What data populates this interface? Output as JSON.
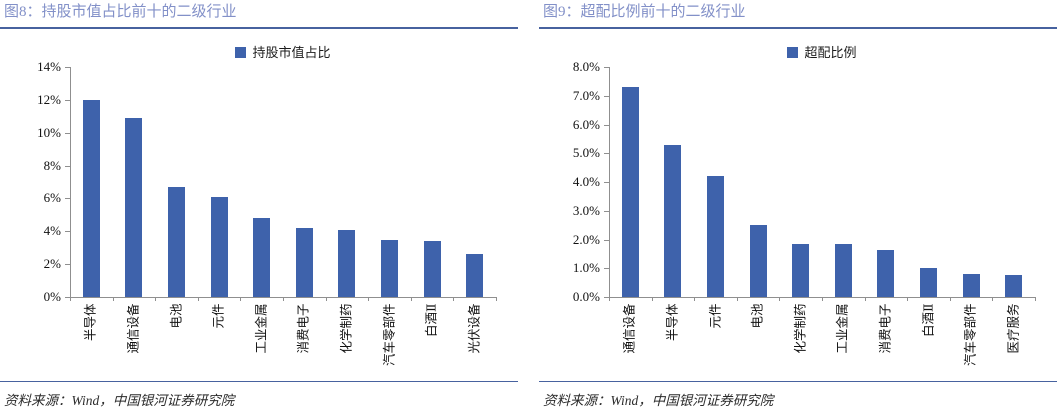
{
  "colors": {
    "bar": "#3E62AB",
    "title_text": "#8290C8",
    "rule": "#47629F",
    "axis": "#8F8F8F"
  },
  "figures": [
    {
      "title": "图8：持股市值占比前十的二级行业",
      "source": "资料来源：Wind，中国银河证券研究院"
    },
    {
      "title": "图9：超配比例前十的二级行业",
      "source": "资料来源：Wind，中国银河证券研究院"
    }
  ],
  "chart_data": [
    {
      "type": "bar",
      "title": "图8：持股市值占比前十的二级行业",
      "legend": [
        "持股市值占比"
      ],
      "legend_position": "top-center",
      "categories": [
        "半导体",
        "通信设备",
        "电池",
        "元件",
        "工业金属",
        "消费电子",
        "化学制药",
        "汽车零部件",
        "白酒Ⅱ",
        "光伏设备"
      ],
      "values": [
        12.0,
        10.9,
        6.7,
        6.1,
        4.8,
        4.2,
        4.1,
        3.5,
        3.4,
        2.6
      ],
      "unit": "%",
      "xlabel": "",
      "ylabel": "",
      "ylim": [
        0,
        14
      ],
      "ytick_labels": [
        "0%",
        "2%",
        "4%",
        "6%",
        "8%",
        "10%",
        "12%",
        "14%"
      ],
      "grid": false
    },
    {
      "type": "bar",
      "title": "图9：超配比例前十的二级行业",
      "legend": [
        "超配比例"
      ],
      "legend_position": "top-center",
      "categories": [
        "通信设备",
        "半导体",
        "元件",
        "电池",
        "化学制药",
        "工业金属",
        "消费电子",
        "白酒Ⅱ",
        "汽车零部件",
        "医疗服务"
      ],
      "values": [
        7.3,
        5.3,
        4.2,
        2.5,
        1.85,
        1.85,
        1.65,
        1.0,
        0.8,
        0.75
      ],
      "unit": "%",
      "xlabel": "",
      "ylabel": "",
      "ylim": [
        0,
        8
      ],
      "ytick_labels": [
        "0.0%",
        "1.0%",
        "2.0%",
        "3.0%",
        "4.0%",
        "5.0%",
        "6.0%",
        "7.0%",
        "8.0%"
      ],
      "grid": false
    }
  ]
}
